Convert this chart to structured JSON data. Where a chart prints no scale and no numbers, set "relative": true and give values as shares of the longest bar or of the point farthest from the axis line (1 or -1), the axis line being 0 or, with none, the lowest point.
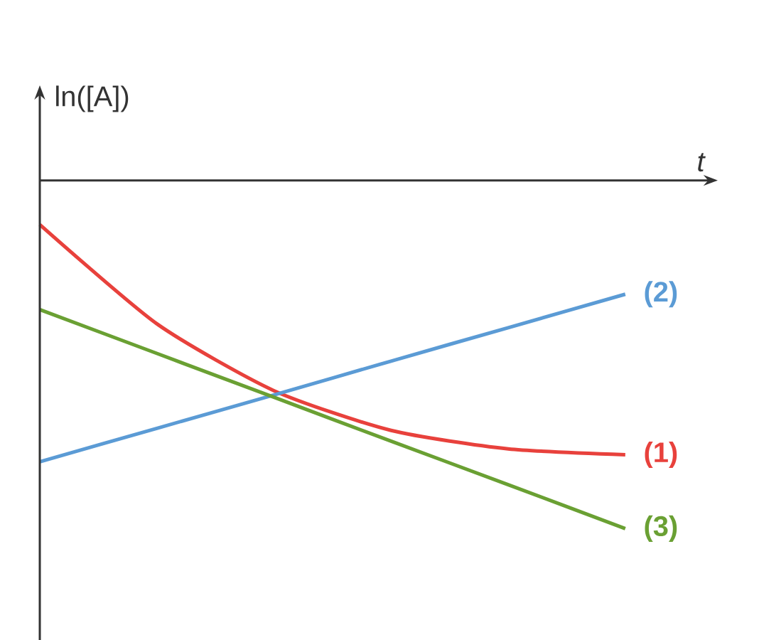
{
  "chart_data": {
    "type": "line",
    "xlabel": "t",
    "ylabel": "ln([A])",
    "relative": true,
    "categories": [
      null,
      null,
      null,
      null,
      null,
      null
    ],
    "series": [
      {
        "name": "(1)",
        "color": "#e8413c",
        "values": [
          -0.127,
          -0.412,
          -0.604,
          -0.718,
          -0.771,
          -0.788
        ]
      },
      {
        "name": "(2)",
        "color": "#5b9bd5",
        "values": [
          -0.808,
          -0.712,
          -0.616,
          -0.519,
          -0.423,
          -0.327
        ]
      },
      {
        "name": "(3)",
        "color": "#6aa033",
        "values": [
          -0.371,
          -0.497,
          -0.623,
          -0.749,
          -0.874,
          -1
        ]
      }
    ]
  }
}
